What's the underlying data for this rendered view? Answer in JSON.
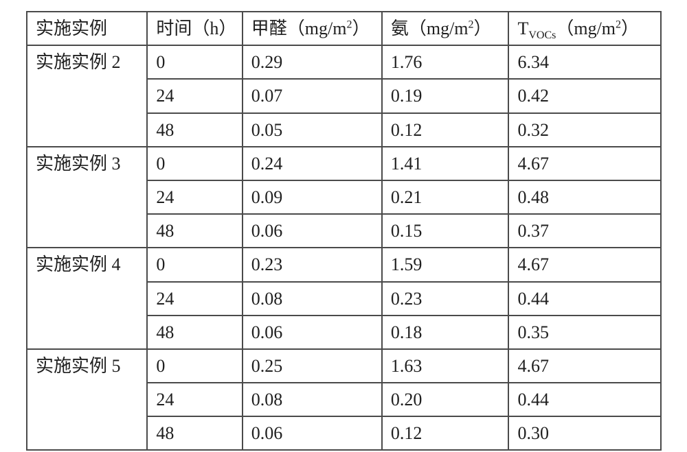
{
  "table": {
    "type": "table",
    "background_color": "#ffffff",
    "border_color": "#4a4a4a",
    "border_width": 2,
    "text_color": "#202020",
    "font_family": "SimSun",
    "header_fontsize": 26,
    "cell_fontsize": 26,
    "column_widths_pct": [
      19,
      15,
      22,
      20,
      24
    ],
    "columns": {
      "c1": "实施实例",
      "c2": "时间（h）",
      "c3_pre": "甲醛（mg/m",
      "c3_sup": "2",
      "c3_post": "）",
      "c4_pre": "氨（mg/m",
      "c4_sup": "2",
      "c4_post": "）",
      "c5_pre1": "T",
      "c5_sub": "VOCs",
      "c5_pre2": "（mg/m",
      "c5_sup": "2",
      "c5_post": "）"
    },
    "groups": [
      {
        "label": "实施实例 2",
        "rows": [
          {
            "time": "0",
            "hcho": "0.29",
            "nh3": "1.76",
            "tvoc": "6.34"
          },
          {
            "time": "24",
            "hcho": "0.07",
            "nh3": "0.19",
            "tvoc": "0.42"
          },
          {
            "time": "48",
            "hcho": "0.05",
            "nh3": "0.12",
            "tvoc": "0.32"
          }
        ]
      },
      {
        "label": "实施实例 3",
        "rows": [
          {
            "time": "0",
            "hcho": "0.24",
            "nh3": "1.41",
            "tvoc": "4.67"
          },
          {
            "time": "24",
            "hcho": "0.09",
            "nh3": "0.21",
            "tvoc": "0.48"
          },
          {
            "time": "48",
            "hcho": "0.06",
            "nh3": "0.15",
            "tvoc": "0.37"
          }
        ]
      },
      {
        "label": "实施实例 4",
        "rows": [
          {
            "time": "0",
            "hcho": "0.23",
            "nh3": "1.59",
            "tvoc": "4.67"
          },
          {
            "time": "24",
            "hcho": "0.08",
            "nh3": "0.23",
            "tvoc": "0.44"
          },
          {
            "time": "48",
            "hcho": "0.06",
            "nh3": "0.18",
            "tvoc": "0.35"
          }
        ]
      },
      {
        "label": "实施实例 5",
        "rows": [
          {
            "time": "0",
            "hcho": "0.25",
            "nh3": "1.63",
            "tvoc": "4.67"
          },
          {
            "time": "24",
            "hcho": "0.08",
            "nh3": "0.20",
            "tvoc": "0.44"
          },
          {
            "time": "48",
            "hcho": "0.06",
            "nh3": "0.12",
            "tvoc": "0.30"
          }
        ]
      }
    ]
  }
}
